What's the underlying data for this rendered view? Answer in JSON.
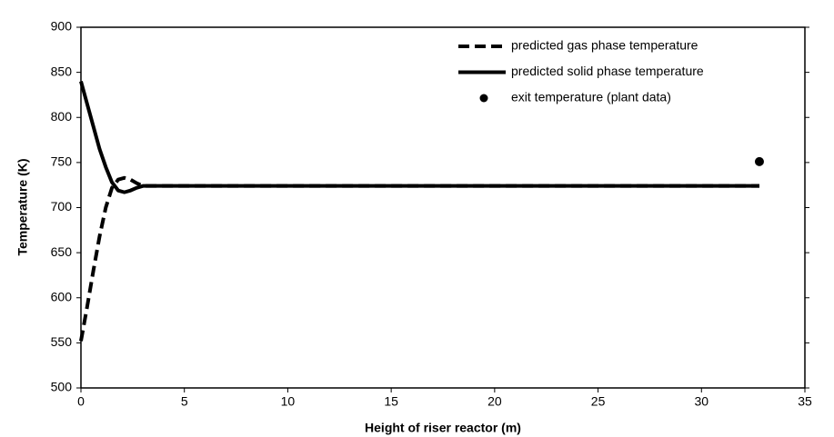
{
  "chart_data": {
    "type": "line",
    "x_label": "Height of riser reactor (m)",
    "y_label": "Temperature (K)",
    "xlim": [
      0,
      35
    ],
    "xticks": [
      0,
      5,
      10,
      15,
      20,
      25,
      30,
      35
    ],
    "ylim": [
      500,
      900
    ],
    "yticks": [
      500,
      550,
      600,
      650,
      700,
      750,
      800,
      850,
      900
    ],
    "legend": "top-right",
    "series": [
      {
        "name": "predicted gas phase temperature",
        "color": "#000000",
        "style": "dashed",
        "x": [
          0,
          0.3,
          0.6,
          0.9,
          1.2,
          1.5,
          1.8,
          2.1,
          2.4,
          2.7,
          3,
          5,
          10,
          15,
          20,
          25,
          30,
          32.8
        ],
        "values": [
          552,
          590,
          630,
          668,
          700,
          722,
          731,
          733,
          731,
          727,
          724,
          724,
          724,
          724,
          724,
          724,
          724,
          724
        ]
      },
      {
        "name": "predicted solid phase temperature",
        "color": "#000000",
        "style": "solid",
        "x": [
          0,
          0.3,
          0.6,
          0.9,
          1.2,
          1.5,
          1.8,
          2.1,
          2.4,
          2.7,
          3,
          5,
          10,
          15,
          20,
          25,
          30,
          32.8
        ],
        "values": [
          840,
          815,
          790,
          765,
          745,
          728,
          719,
          717,
          719,
          722,
          724,
          724,
          724,
          724,
          724,
          724,
          724,
          724
        ]
      },
      {
        "name": "exit temperature (plant data)",
        "color": "#000000",
        "style": "marker",
        "x": [
          32.8
        ],
        "values": [
          751
        ]
      }
    ]
  }
}
